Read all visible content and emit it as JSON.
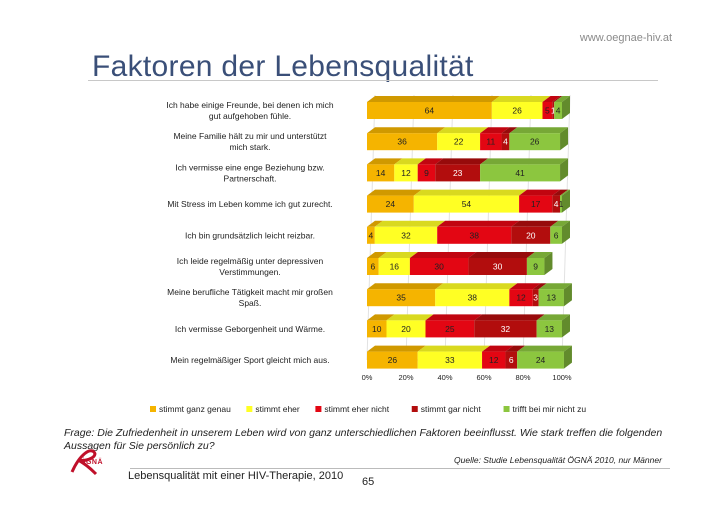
{
  "header": {
    "url": "www.oegnae-hiv.at",
    "title": "Faktoren der Lebensqualität"
  },
  "chart_data": {
    "type": "bar",
    "orientation": "horizontal",
    "stacked": "percent",
    "categories": [
      "Ich habe einige Freunde, bei denen ich mich gut aufgehoben fühle.",
      "Meine Familie hält zu mir und unterstützt mich stark.",
      "Ich vermisse eine enge Beziehung bzw. Partnerschaft.",
      "Mit Stress im Leben komme ich gut zurecht.",
      "Ich bin grundsätzlich leicht reizbar.",
      "Ich leide regelmäßig unter depressiven Verstimmungen.",
      "Meine berufliche Tätigkeit macht mir großen Spaß.",
      "Ich vermisse Geborgenheit und Wärme.",
      "Mein regelmäßiger Sport gleicht mich aus."
    ],
    "series": [
      {
        "name": "stimmt ganz genau",
        "color": "#f5b400",
        "values": [
          64,
          36,
          14,
          24,
          4,
          6,
          35,
          10,
          26
        ]
      },
      {
        "name": "stimmt eher",
        "color": "#ffff24",
        "values": [
          26,
          22,
          12,
          54,
          32,
          16,
          38,
          20,
          33
        ]
      },
      {
        "name": "stimmt eher nicht",
        "color": "#e30613",
        "values": [
          5,
          11,
          9,
          17,
          38,
          30,
          12,
          25,
          12
        ]
      },
      {
        "name": "stimmt gar nicht",
        "color": "#b20d0d",
        "values": [
          1,
          4,
          23,
          4,
          20,
          30,
          3,
          32,
          6
        ]
      },
      {
        "name": "trifft bei mir nicht zu",
        "color": "#8cc63f",
        "values": [
          4,
          26,
          41,
          1,
          6,
          9,
          13,
          13,
          24
        ]
      }
    ],
    "xticks": [
      "0%",
      "20%",
      "40%",
      "60%",
      "80%",
      "100%"
    ],
    "xlim": [
      0,
      100
    ],
    "legend_position": "bottom"
  },
  "question": "Frage: Die Zufriedenheit in unserem Leben wird von ganz unterschiedlichen Faktoren beeinflusst. Wie stark treffen die folgenden Aussagen für Sie persönlich zu?",
  "source": "Quelle: Studie Lebensqualität ÖGNÄ 2010, nur Männer",
  "footer": {
    "text": "Lebensqualität mit einer HIV-Therapie, 2010",
    "page": "65",
    "logo_text": "ÖGNÄ"
  }
}
